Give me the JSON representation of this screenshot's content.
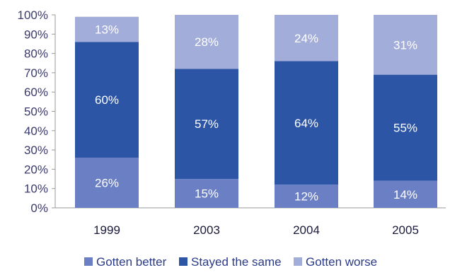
{
  "chart_data": {
    "type": "bar",
    "stacked": true,
    "categories": [
      "1999",
      "2003",
      "2004",
      "2005"
    ],
    "series": [
      {
        "name": "Gotten better",
        "values": [
          26,
          15,
          12,
          14
        ],
        "color": "#6b7fc4",
        "labels": [
          "26%",
          "15%",
          "12%",
          "14%"
        ]
      },
      {
        "name": "Stayed the same",
        "values": [
          60,
          57,
          64,
          55
        ],
        "color": "#2c55a6",
        "labels": [
          "60%",
          "57%",
          "64%",
          "55%"
        ]
      },
      {
        "name": "Gotten worse",
        "values": [
          13,
          28,
          24,
          31
        ],
        "color": "#a3add9",
        "labels": [
          "13%",
          "28%",
          "24%",
          "31%"
        ]
      }
    ],
    "yticks": [
      "0%",
      "10%",
      "20%",
      "30%",
      "40%",
      "50%",
      "60%",
      "70%",
      "80%",
      "90%",
      "100%"
    ],
    "ylim": [
      0,
      100
    ],
    "grid": false,
    "legend_position": "bottom"
  }
}
